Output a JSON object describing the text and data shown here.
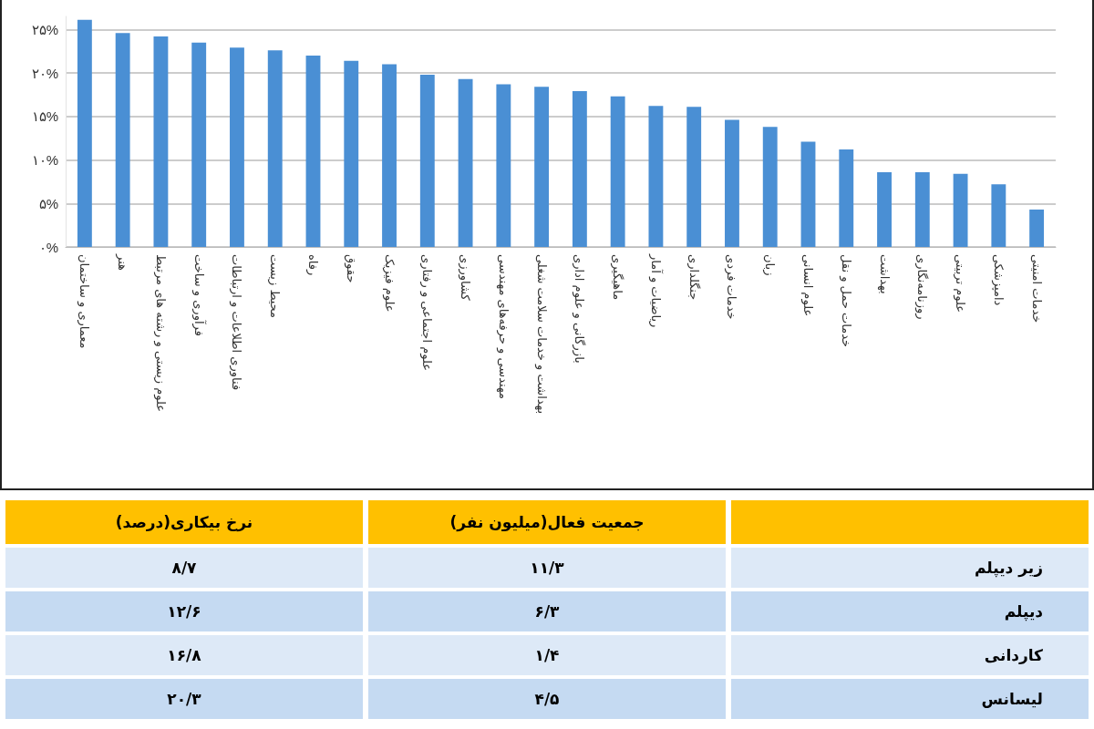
{
  "chart_data": [
    {
      "type": "bar",
      "categories": [
        "معماری و ساختمان",
        "هنر",
        "علوم زیستی و رشته های مرتبط",
        "فرآوری و ساخت",
        "فناوری اطلاعات و ارتباطات",
        "محیط زیست",
        "رفاه",
        "حقوق",
        "علوم فیزیک",
        "علوم اجتماعی و رفتاری",
        "کشاورزی",
        "مهندسی و حرفه‌های مهندسی",
        "بهداشت و خدمات سلامت شغلی",
        "بازرگانی و علوم اداری",
        "ماهیگیری",
        "ریاضیات و آمار",
        "جنگلداری",
        "خدمات فردی",
        "زبان",
        "علوم انسانی",
        "خدمات حمل و نقل",
        "بهداشت",
        "روزنامه‌نگاری",
        "علوم تربیتی",
        "دامپزشکی",
        "خدمات امنیتی"
      ],
      "values": [
        26.1,
        24.6,
        24.2,
        23.5,
        22.9,
        22.6,
        22.0,
        21.4,
        21.0,
        19.8,
        19.3,
        18.7,
        18.4,
        17.9,
        17.3,
        16.2,
        16.1,
        14.6,
        13.8,
        12.1,
        11.2,
        8.6,
        8.6,
        8.4,
        7.2,
        4.3
      ],
      "color": "#4a8fd4",
      "ylim": [
        0,
        26.5
      ],
      "yticks": [
        {
          "value": 0,
          "label": "۰%"
        },
        {
          "value": 5,
          "label": "۵%"
        },
        {
          "value": 10,
          "label": "۱۰%"
        },
        {
          "value": 15,
          "label": "۱۵%"
        },
        {
          "value": 20,
          "label": "۲۰%"
        },
        {
          "value": 25,
          "label": "۲۵%"
        }
      ],
      "grid": "y"
    },
    {
      "type": "other",
      "categories": [
        "نرخ بیکاری(درصد)",
        "جمعیت فعال(میلیون نفر)"
      ],
      "y_categories": [
        "زیر دیپلم",
        "دیپلم",
        "کاردانی",
        "لیسانس"
      ],
      "cell_labels": [
        [
          "۸/۷",
          "۱۱/۳"
        ],
        [
          "۱۲/۶",
          "۶/۳"
        ],
        [
          "۱۶/۸",
          "۱/۴"
        ],
        [
          "۲۰/۳",
          "۴/۵"
        ]
      ]
    }
  ]
}
